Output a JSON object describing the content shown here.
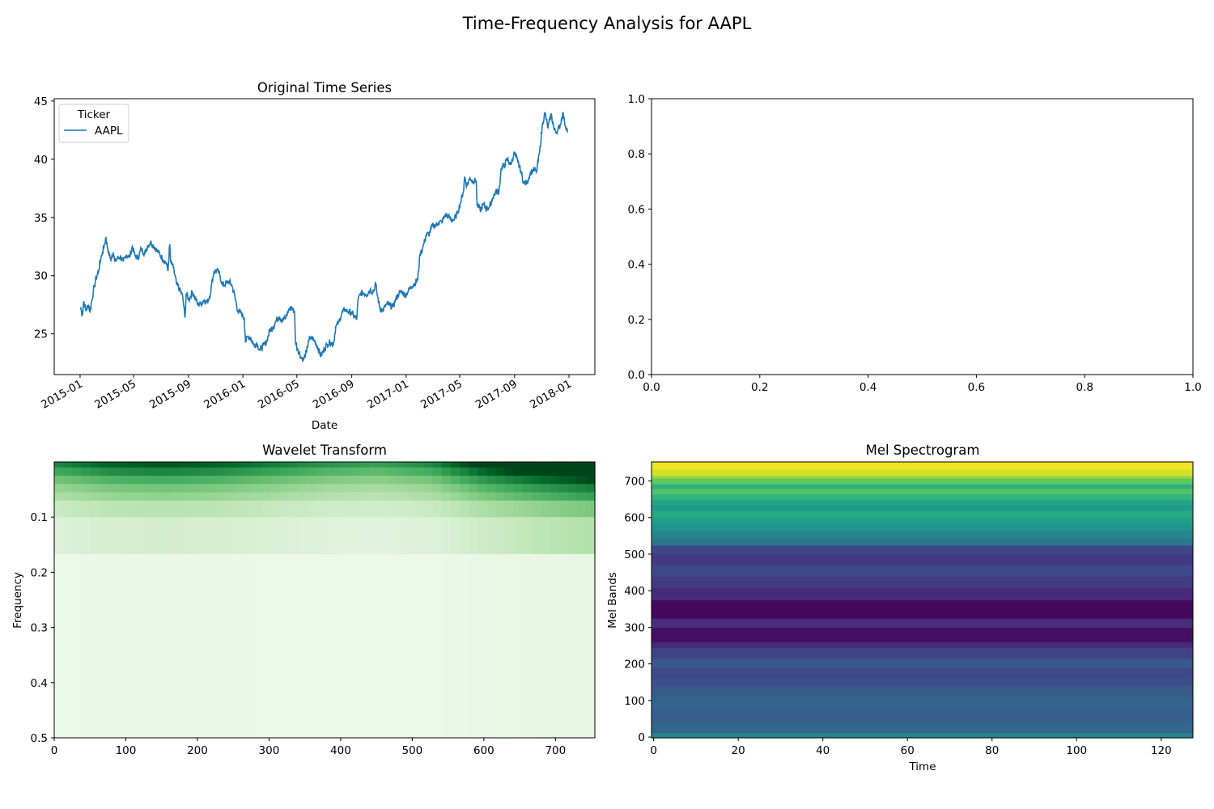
{
  "figure": {
    "title": "Time-Frequency Analysis for AAPL"
  },
  "chart_data": [
    {
      "type": "line",
      "title": "Original Time Series",
      "xlabel": "Date",
      "ylabel": "",
      "ylim": [
        21.5,
        45.2
      ],
      "yticks": [
        25,
        30,
        35,
        40,
        45
      ],
      "xticks": [
        "2015-01",
        "2015-05",
        "2015-09",
        "2016-01",
        "2016-05",
        "2016-09",
        "2017-01",
        "2017-05",
        "2017-09",
        "2018-01"
      ],
      "xlim": [
        "2014-11-04",
        "2018-02-28"
      ],
      "legend": {
        "title": "Ticker",
        "placement": "upper left",
        "entries": [
          "AAPL"
        ]
      },
      "series": [
        {
          "name": "AAPL",
          "color": "#1f77b4",
          "points": [
            [
              "2015-01-02",
              27.3
            ],
            [
              "2015-01-06",
              26.6
            ],
            [
              "2015-01-09",
              27.8
            ],
            [
              "2015-01-14",
              27.0
            ],
            [
              "2015-01-20",
              27.5
            ],
            [
              "2015-01-23",
              26.9
            ],
            [
              "2015-01-28",
              28.0
            ],
            [
              "2015-02-02",
              29.1
            ],
            [
              "2015-02-06",
              29.8
            ],
            [
              "2015-02-12",
              30.5
            ],
            [
              "2015-02-17",
              31.6
            ],
            [
              "2015-02-20",
              32.0
            ],
            [
              "2015-02-24",
              32.6
            ],
            [
              "2015-02-27",
              33.2
            ],
            [
              "2015-03-04",
              32.3
            ],
            [
              "2015-03-10",
              31.4
            ],
            [
              "2015-03-16",
              32.0
            ],
            [
              "2015-03-20",
              31.2
            ],
            [
              "2015-03-26",
              31.5
            ],
            [
              "2015-04-01",
              31.6
            ],
            [
              "2015-04-08",
              31.2
            ],
            [
              "2015-04-15",
              31.8
            ],
            [
              "2015-04-22",
              31.6
            ],
            [
              "2015-04-28",
              32.5
            ],
            [
              "2015-05-04",
              31.7
            ],
            [
              "2015-05-11",
              31.5
            ],
            [
              "2015-05-18",
              32.3
            ],
            [
              "2015-05-26",
              31.9
            ],
            [
              "2015-06-01",
              32.5
            ],
            [
              "2015-06-08",
              32.9
            ],
            [
              "2015-06-15",
              32.5
            ],
            [
              "2015-06-22",
              32.2
            ],
            [
              "2015-06-29",
              31.8
            ],
            [
              "2015-07-06",
              31.4
            ],
            [
              "2015-07-13",
              31.1
            ],
            [
              "2015-07-17",
              30.4
            ],
            [
              "2015-07-21",
              32.7
            ],
            [
              "2015-07-23",
              31.2
            ],
            [
              "2015-07-29",
              30.7
            ],
            [
              "2015-08-05",
              29.3
            ],
            [
              "2015-08-12",
              28.8
            ],
            [
              "2015-08-19",
              28.2
            ],
            [
              "2015-08-24",
              26.4
            ],
            [
              "2015-08-27",
              28.5
            ],
            [
              "2015-09-02",
              27.9
            ],
            [
              "2015-09-09",
              28.6
            ],
            [
              "2015-09-16",
              28.1
            ],
            [
              "2015-09-22",
              27.5
            ],
            [
              "2015-09-29",
              27.6
            ],
            [
              "2015-10-06",
              27.9
            ],
            [
              "2015-10-13",
              27.7
            ],
            [
              "2015-10-20",
              28.4
            ],
            [
              "2015-10-23",
              29.3
            ],
            [
              "2015-10-28",
              30.3
            ],
            [
              "2015-11-03",
              30.5
            ],
            [
              "2015-11-10",
              30.1
            ],
            [
              "2015-11-16",
              29.2
            ],
            [
              "2015-11-23",
              29.3
            ],
            [
              "2015-11-30",
              29.5
            ],
            [
              "2015-12-07",
              29.2
            ],
            [
              "2015-12-14",
              28.2
            ],
            [
              "2015-12-21",
              26.9
            ],
            [
              "2015-12-28",
              26.8
            ],
            [
              "2016-01-04",
              26.3
            ],
            [
              "2016-01-07",
              24.3
            ],
            [
              "2016-01-12",
              24.8
            ],
            [
              "2016-01-19",
              24.6
            ],
            [
              "2016-01-26",
              24.0
            ],
            [
              "2016-02-01",
              24.2
            ],
            [
              "2016-02-08",
              23.6
            ],
            [
              "2016-02-16",
              24.0
            ],
            [
              "2016-02-23",
              24.3
            ],
            [
              "2016-03-01",
              25.3
            ],
            [
              "2016-03-08",
              25.5
            ],
            [
              "2016-03-15",
              26.1
            ],
            [
              "2016-03-22",
              26.5
            ],
            [
              "2016-03-29",
              26.2
            ],
            [
              "2016-04-05",
              26.3
            ],
            [
              "2016-04-12",
              27.0
            ],
            [
              "2016-04-19",
              27.3
            ],
            [
              "2016-04-26",
              26.8
            ],
            [
              "2016-04-28",
              24.2
            ],
            [
              "2016-05-03",
              23.7
            ],
            [
              "2016-05-10",
              23.0
            ],
            [
              "2016-05-16",
              22.8
            ],
            [
              "2016-05-23",
              23.5
            ],
            [
              "2016-05-27",
              24.4
            ],
            [
              "2016-06-03",
              24.7
            ],
            [
              "2016-06-10",
              24.4
            ],
            [
              "2016-06-17",
              23.8
            ],
            [
              "2016-06-24",
              23.1
            ],
            [
              "2016-06-30",
              23.6
            ],
            [
              "2016-07-08",
              24.1
            ],
            [
              "2016-07-15",
              24.3
            ],
            [
              "2016-07-22",
              24.1
            ],
            [
              "2016-07-27",
              25.6
            ],
            [
              "2016-08-03",
              26.0
            ],
            [
              "2016-08-10",
              26.8
            ],
            [
              "2016-08-17",
              27.1
            ],
            [
              "2016-08-24",
              26.9
            ],
            [
              "2016-08-31",
              26.8
            ],
            [
              "2016-09-07",
              26.5
            ],
            [
              "2016-09-12",
              26.2
            ],
            [
              "2016-09-15",
              27.9
            ],
            [
              "2016-09-21",
              28.5
            ],
            [
              "2016-09-28",
              28.5
            ],
            [
              "2016-10-05",
              28.4
            ],
            [
              "2016-10-12",
              28.8
            ],
            [
              "2016-10-19",
              28.6
            ],
            [
              "2016-10-25",
              29.3
            ],
            [
              "2016-10-27",
              28.6
            ],
            [
              "2016-11-03",
              27.2
            ],
            [
              "2016-11-10",
              27.0
            ],
            [
              "2016-11-17",
              27.5
            ],
            [
              "2016-11-25",
              27.5
            ],
            [
              "2016-12-02",
              27.3
            ],
            [
              "2016-12-09",
              28.0
            ],
            [
              "2016-12-16",
              28.5
            ],
            [
              "2016-12-23",
              28.6
            ],
            [
              "2016-12-30",
              28.3
            ],
            [
              "2017-01-06",
              28.7
            ],
            [
              "2017-01-13",
              29.1
            ],
            [
              "2017-01-20",
              29.3
            ],
            [
              "2017-01-27",
              29.7
            ],
            [
              "2017-02-01",
              31.8
            ],
            [
              "2017-02-08",
              32.5
            ],
            [
              "2017-02-15",
              33.5
            ],
            [
              "2017-02-22",
              33.6
            ],
            [
              "2017-03-01",
              34.3
            ],
            [
              "2017-03-08",
              34.3
            ],
            [
              "2017-03-15",
              34.6
            ],
            [
              "2017-03-22",
              34.6
            ],
            [
              "2017-03-29",
              35.2
            ],
            [
              "2017-04-05",
              35.1
            ],
            [
              "2017-04-12",
              34.8
            ],
            [
              "2017-04-19",
              34.8
            ],
            [
              "2017-04-26",
              35.4
            ],
            [
              "2017-05-03",
              36.3
            ],
            [
              "2017-05-10",
              37.4
            ],
            [
              "2017-05-12",
              38.5
            ],
            [
              "2017-05-17",
              37.7
            ],
            [
              "2017-05-24",
              38.4
            ],
            [
              "2017-05-31",
              38.1
            ],
            [
              "2017-06-07",
              38.2
            ],
            [
              "2017-06-09",
              36.1
            ],
            [
              "2017-06-16",
              35.6
            ],
            [
              "2017-06-23",
              36.1
            ],
            [
              "2017-06-30",
              35.8
            ],
            [
              "2017-07-07",
              35.9
            ],
            [
              "2017-07-14",
              36.7
            ],
            [
              "2017-07-21",
              37.2
            ],
            [
              "2017-07-28",
              37.2
            ],
            [
              "2017-08-02",
              39.2
            ],
            [
              "2017-08-09",
              39.5
            ],
            [
              "2017-08-16",
              40.0
            ],
            [
              "2017-08-23",
              39.5
            ],
            [
              "2017-08-30",
              40.4
            ],
            [
              "2017-09-01",
              40.5
            ],
            [
              "2017-09-08",
              39.8
            ],
            [
              "2017-09-15",
              39.0
            ],
            [
              "2017-09-22",
              37.9
            ],
            [
              "2017-09-29",
              38.0
            ],
            [
              "2017-10-06",
              38.8
            ],
            [
              "2017-10-13",
              39.1
            ],
            [
              "2017-10-20",
              38.9
            ],
            [
              "2017-10-27",
              40.6
            ],
            [
              "2017-11-03",
              43.1
            ],
            [
              "2017-11-08",
              44.0
            ],
            [
              "2017-11-15",
              42.7
            ],
            [
              "2017-11-22",
              43.9
            ],
            [
              "2017-11-29",
              42.5
            ],
            [
              "2017-12-06",
              42.4
            ],
            [
              "2017-12-13",
              43.0
            ],
            [
              "2017-12-18",
              44.0
            ],
            [
              "2017-12-22",
              43.2
            ],
            [
              "2017-12-28",
              42.5
            ],
            [
              "2017-12-29",
              42.3
            ]
          ]
        }
      ]
    },
    {
      "type": "line",
      "title": "",
      "xlim": [
        0,
        1
      ],
      "ylim": [
        0,
        1
      ],
      "xticks": [
        "0.0",
        "0.2",
        "0.4",
        "0.6",
        "0.8",
        "1.0"
      ],
      "yticks": [
        "0.0",
        "0.2",
        "0.4",
        "0.6",
        "0.8",
        "1.0"
      ],
      "series": []
    },
    {
      "type": "heatmap",
      "title": "Wavelet Transform",
      "xlabel": "",
      "ylabel": "Frequency",
      "xlim": [
        0,
        755
      ],
      "ylim": [
        0.5,
        0.0
      ],
      "xticks": [
        0,
        100,
        200,
        300,
        400,
        500,
        600,
        700
      ],
      "yticks": [
        "0.1",
        "0.2",
        "0.3",
        "0.4",
        "0.5"
      ],
      "colormap": "Greens",
      "description_scale": "darker at low frequency and toward later time",
      "bands": [
        {
          "f0": 0.0,
          "f1": 0.01,
          "level": 0.95
        },
        {
          "f0": 0.01,
          "f1": 0.025,
          "level": 0.78
        },
        {
          "f0": 0.025,
          "f1": 0.04,
          "level": 0.62
        },
        {
          "f0": 0.04,
          "f1": 0.055,
          "level": 0.5
        },
        {
          "f0": 0.055,
          "f1": 0.07,
          "level": 0.42
        },
        {
          "f0": 0.07,
          "f1": 0.1,
          "level": 0.3
        },
        {
          "f0": 0.1,
          "f1": 0.167,
          "level": 0.2
        },
        {
          "f0": 0.167,
          "f1": 0.5,
          "level": 0.09
        }
      ],
      "time_profile": [
        0.8,
        0.95,
        1.0,
        0.95,
        0.85,
        0.75,
        0.7,
        0.8,
        1.15,
        1.4,
        1.6
      ]
    },
    {
      "type": "heatmap",
      "title": "Mel Spectrogram",
      "xlabel": "Time",
      "ylabel": "Mel Bands",
      "xlim": [
        -0.5,
        127.5
      ],
      "ylim": [
        -2,
        752
      ],
      "xticks": [
        0,
        20,
        40,
        60,
        80,
        100,
        120
      ],
      "yticks": [
        0,
        100,
        200,
        300,
        400,
        500,
        600,
        700
      ],
      "colormap": "viridis",
      "bands": [
        {
          "m0": -2,
          "m1": 12,
          "level": 0.45
        },
        {
          "m0": 12,
          "m1": 40,
          "level": 0.33
        },
        {
          "m0": 40,
          "m1": 80,
          "level": 0.3
        },
        {
          "m0": 80,
          "m1": 110,
          "level": 0.32
        },
        {
          "m0": 110,
          "m1": 140,
          "level": 0.29
        },
        {
          "m0": 140,
          "m1": 160,
          "level": 0.24
        },
        {
          "m0": 160,
          "m1": 190,
          "level": 0.22
        },
        {
          "m0": 190,
          "m1": 215,
          "level": 0.27
        },
        {
          "m0": 215,
          "m1": 245,
          "level": 0.2
        },
        {
          "m0": 245,
          "m1": 260,
          "level": 0.12
        },
        {
          "m0": 260,
          "m1": 300,
          "level": 0.04
        },
        {
          "m0": 300,
          "m1": 325,
          "level": 0.13
        },
        {
          "m0": 325,
          "m1": 375,
          "level": 0.02
        },
        {
          "m0": 375,
          "m1": 410,
          "level": 0.12
        },
        {
          "m0": 410,
          "m1": 440,
          "level": 0.18
        },
        {
          "m0": 440,
          "m1": 470,
          "level": 0.22
        },
        {
          "m0": 470,
          "m1": 500,
          "level": 0.17
        },
        {
          "m0": 500,
          "m1": 525,
          "level": 0.21
        },
        {
          "m0": 525,
          "m1": 545,
          "level": 0.4
        },
        {
          "m0": 545,
          "m1": 565,
          "level": 0.46
        },
        {
          "m0": 565,
          "m1": 585,
          "level": 0.52
        },
        {
          "m0": 585,
          "m1": 600,
          "level": 0.56
        },
        {
          "m0": 600,
          "m1": 620,
          "level": 0.6
        },
        {
          "m0": 620,
          "m1": 635,
          "level": 0.54
        },
        {
          "m0": 635,
          "m1": 650,
          "level": 0.58
        },
        {
          "m0": 650,
          "m1": 665,
          "level": 0.66
        },
        {
          "m0": 665,
          "m1": 680,
          "level": 0.72
        },
        {
          "m0": 680,
          "m1": 692,
          "level": 0.63
        },
        {
          "m0": 692,
          "m1": 708,
          "level": 0.75
        },
        {
          "m0": 708,
          "m1": 716,
          "level": 0.85
        },
        {
          "m0": 716,
          "m1": 732,
          "level": 0.93
        },
        {
          "m0": 732,
          "m1": 752,
          "level": 0.98
        }
      ]
    }
  ]
}
